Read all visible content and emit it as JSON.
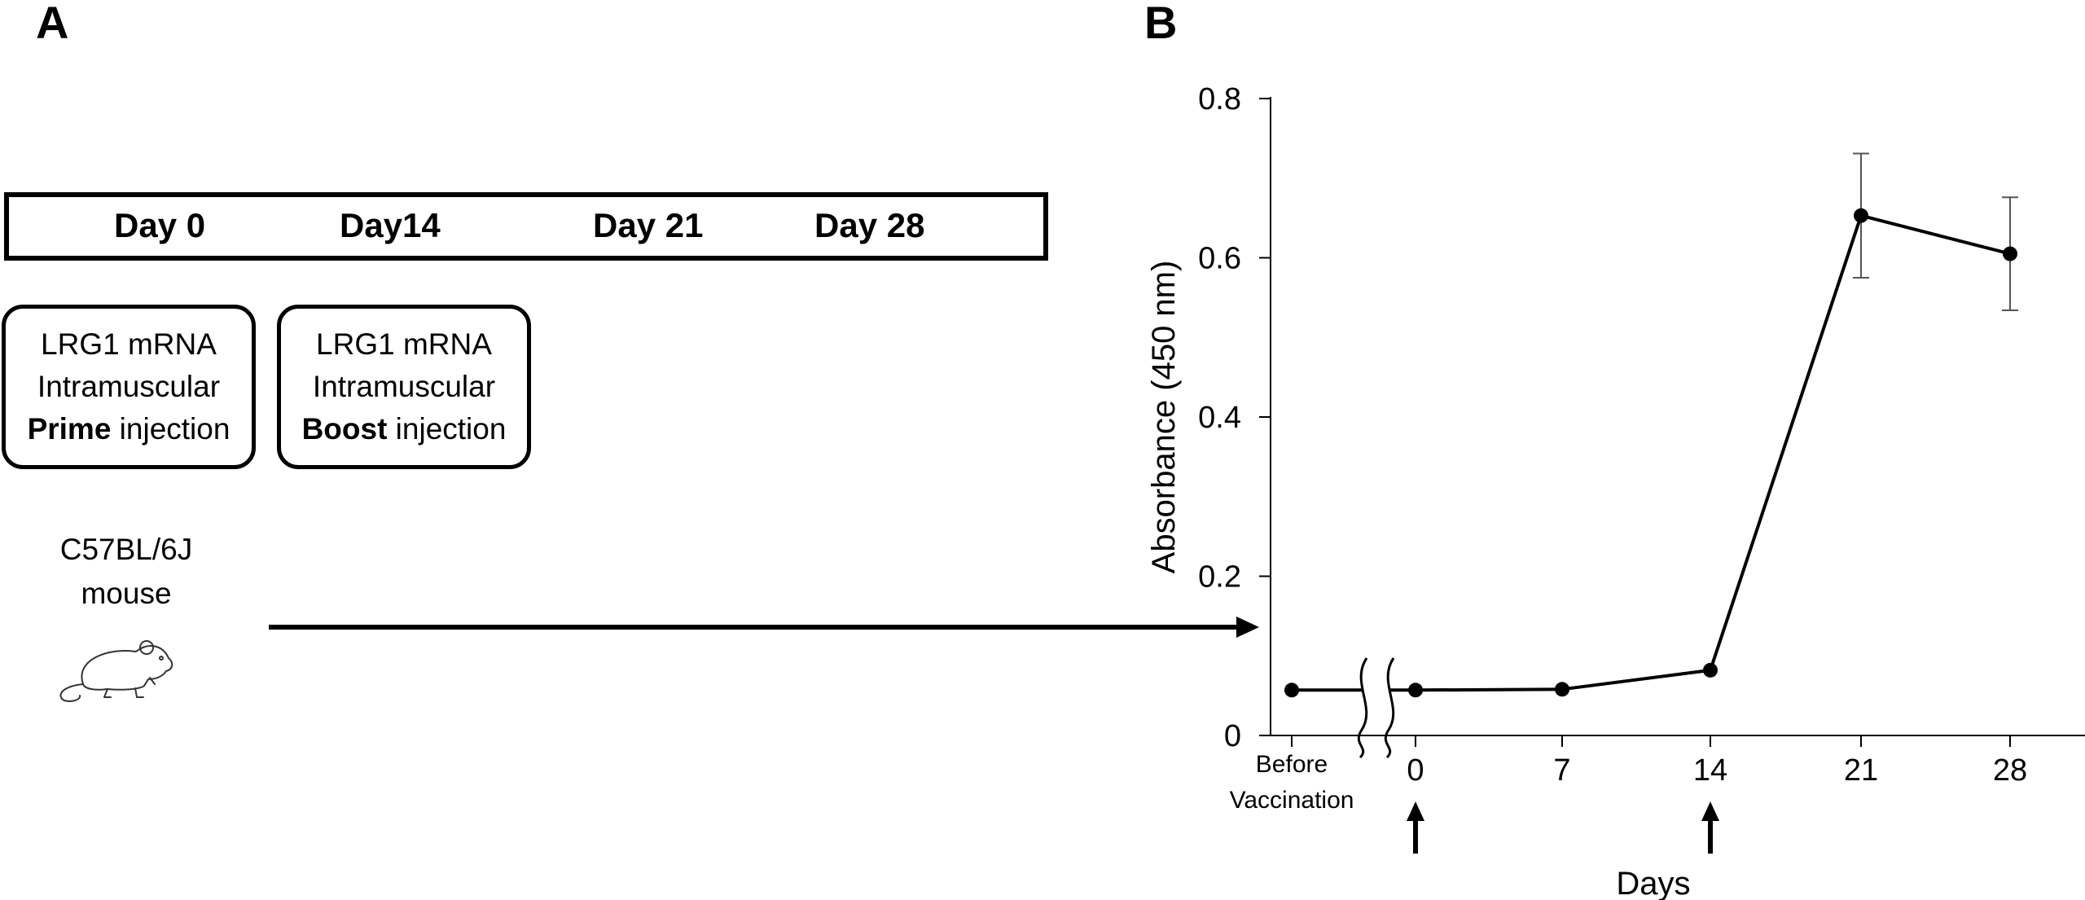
{
  "panel_a": {
    "letter": "A",
    "timeline_days": [
      "Day 0",
      "Day14",
      "Day 21",
      "Day 28"
    ],
    "prime_box": {
      "line1": "LRG1 mRNA",
      "line2": "Intramuscular",
      "bold": "Prime",
      "rest": " injection"
    },
    "boost_box": {
      "line1": "LRG1 mRNA",
      "line2": "Intramuscular",
      "bold": "Boost",
      "rest": " injection"
    },
    "mouse_label": {
      "line1": "C57BL/6J",
      "line2": "mouse"
    },
    "mouse_icon": "mouse-icon"
  },
  "panel_b": {
    "letter": "B"
  },
  "chart_data": {
    "type": "line",
    "title": "",
    "xlabel": "Days",
    "ylabel": "Absorbance (450 nm)",
    "ylim": [
      0,
      0.8
    ],
    "yticks": [
      0,
      0.2,
      0.4,
      0.6,
      0.8
    ],
    "ytick_labels": [
      "0",
      "0.2",
      "0.4",
      "0.6",
      "0.8"
    ],
    "x_axis_break": "between Before Vaccination and 0",
    "categories": [
      "Before\nVaccination",
      "0",
      "7",
      "14",
      "21",
      "28"
    ],
    "series": [
      {
        "name": "",
        "x": [
          "Before Vaccination",
          0,
          7,
          14,
          21,
          28
        ],
        "values": [
          0.057,
          0.057,
          0.058,
          0.082,
          0.653,
          0.605
        ],
        "error": [
          null,
          null,
          null,
          null,
          0.078,
          0.071
        ]
      }
    ],
    "injection_arrows_at": [
      0,
      14
    ],
    "grid": false,
    "legend": "none"
  }
}
